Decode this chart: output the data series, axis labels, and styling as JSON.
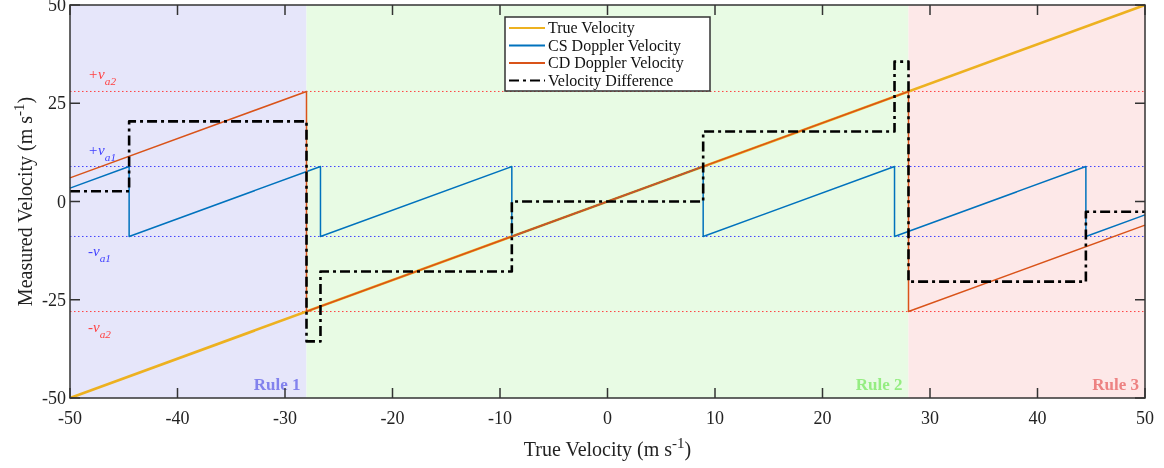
{
  "chart_data": {
    "type": "line",
    "xlabel": "True Velocity (m s$^{-1}$)",
    "ylabel": "Measured Velocity (m s$^{-1}$)",
    "xlim": [
      -50,
      50
    ],
    "xticks": [
      -50,
      -40,
      -30,
      -20,
      -10,
      0,
      10,
      20,
      30,
      40,
      50
    ],
    "ylim": [
      -50,
      50
    ],
    "yticks": [
      -50,
      -25,
      0,
      25,
      50
    ],
    "grid": false,
    "legend": "top",
    "series": [
      {
        "name": "True Velocity",
        "color": "#edb120",
        "line_style": "solid",
        "x": [
          -50,
          50
        ],
        "values": [
          -50,
          50
        ]
      },
      {
        "name": "CS Doppler Velocity",
        "color": "#0072bd",
        "line_style": "solid",
        "x": [
          -50,
          -44.5,
          -44.5,
          -26.7,
          -26.7,
          -8.9,
          -8.9,
          8.9,
          8.9,
          26.7,
          26.7,
          44.5,
          44.5,
          50
        ],
        "values": [
          3.4,
          8.9,
          -8.9,
          8.9,
          -8.9,
          8.9,
          -8.9,
          8.9,
          -8.9,
          8.9,
          -8.9,
          8.9,
          -8.9,
          -3.4
        ]
      },
      {
        "name": "CD Doppler Velocity",
        "color": "#d95319",
        "line_style": "solid",
        "x": [
          -50,
          -28,
          -28,
          28,
          28,
          50
        ],
        "values": [
          6,
          28,
          -28,
          28,
          -28,
          -6
        ]
      },
      {
        "name": "Velocity Difference",
        "color": "#000000",
        "line_style": "dashed",
        "x": [
          -50,
          -44.5,
          -44.5,
          -28,
          -28,
          -26.7,
          -26.7,
          -8.9,
          -8.9,
          8.9,
          8.9,
          26.7,
          26.7,
          28,
          28,
          44.5,
          44.5,
          50
        ],
        "values": [
          2.6,
          2.6,
          20.4,
          20.4,
          -35.6,
          -35.6,
          -17.8,
          -17.8,
          0,
          0,
          17.8,
          17.8,
          35.6,
          35.6,
          -20.4,
          -20.4,
          -2.6,
          -2.6
        ]
      }
    ],
    "ref_lines": [
      {
        "axis": "y",
        "value": 28,
        "label": "+v$_{a2}$",
        "color": "#ff4040",
        "line_style": "dotted"
      },
      {
        "axis": "y",
        "value": 8.9,
        "label": "+v$_{a1}$",
        "color": "#4040ff",
        "line_style": "dotted"
      },
      {
        "axis": "y",
        "value": -8.9,
        "label": "-v$_{a1}$",
        "color": "#4040ff",
        "line_style": "dotted"
      },
      {
        "axis": "y",
        "value": -28,
        "label": "-v$_{a2}$",
        "color": "#ff4040",
        "line_style": "dotted"
      }
    ],
    "bands": [
      {
        "axis": "x",
        "from": -50,
        "to": -28,
        "label": "Rule 1",
        "color": "#e6e6fa"
      },
      {
        "axis": "x",
        "from": -28,
        "to": 28,
        "label": "Rule 2",
        "color": "#e8fbe4"
      },
      {
        "axis": "x",
        "from": 28,
        "to": 50,
        "label": "Rule 3",
        "color": "#fde8e8"
      }
    ]
  }
}
